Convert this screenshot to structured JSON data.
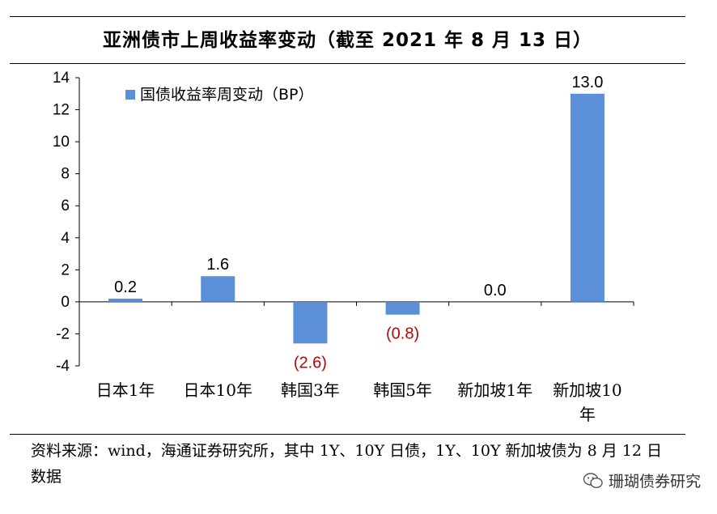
{
  "title": "亚洲债市上周收益率变动（截至 2021 年 8 月 13 日）",
  "chart_data": {
    "type": "bar",
    "categories": [
      "日本1年",
      "日本10年",
      "韩国3年",
      "韩国5年",
      "新加坡1年",
      "新加坡10年"
    ],
    "category_lines": [
      [
        "日本1年"
      ],
      [
        "日本10年"
      ],
      [
        "韩国3年"
      ],
      [
        "韩国5年"
      ],
      [
        "新加坡1年"
      ],
      [
        "新加坡10",
        "年"
      ]
    ],
    "series": [
      {
        "name": "国债收益率周变动（BP）",
        "values": [
          0.2,
          1.6,
          -2.6,
          -0.8,
          0.0,
          13.0
        ]
      }
    ],
    "data_labels": [
      "0.2",
      "1.6",
      "(2.6)",
      "(0.8)",
      "0.0",
      "13.0"
    ],
    "ylim": [
      -4,
      14
    ],
    "yticks": [
      -4,
      -2,
      0,
      2,
      4,
      6,
      8,
      10,
      12,
      14
    ],
    "ytick_labels": [
      "-4",
      "-2",
      "0",
      "2",
      "4",
      "6",
      "8",
      "10",
      "12",
      "14"
    ],
    "legend_position": "top-left",
    "grid": false,
    "colors": {
      "bar": "#5B8FD8",
      "negative_label": "#C00000",
      "positive_label": "#000000"
    }
  },
  "source_note": "资料来源：wind，海通证券研究所，其中 1Y、10Y 日债，1Y、10Y 新加坡债为 8 月 12 日数据",
  "watermark": {
    "icon": "wechat-icon",
    "text": "珊瑚债券研究"
  }
}
